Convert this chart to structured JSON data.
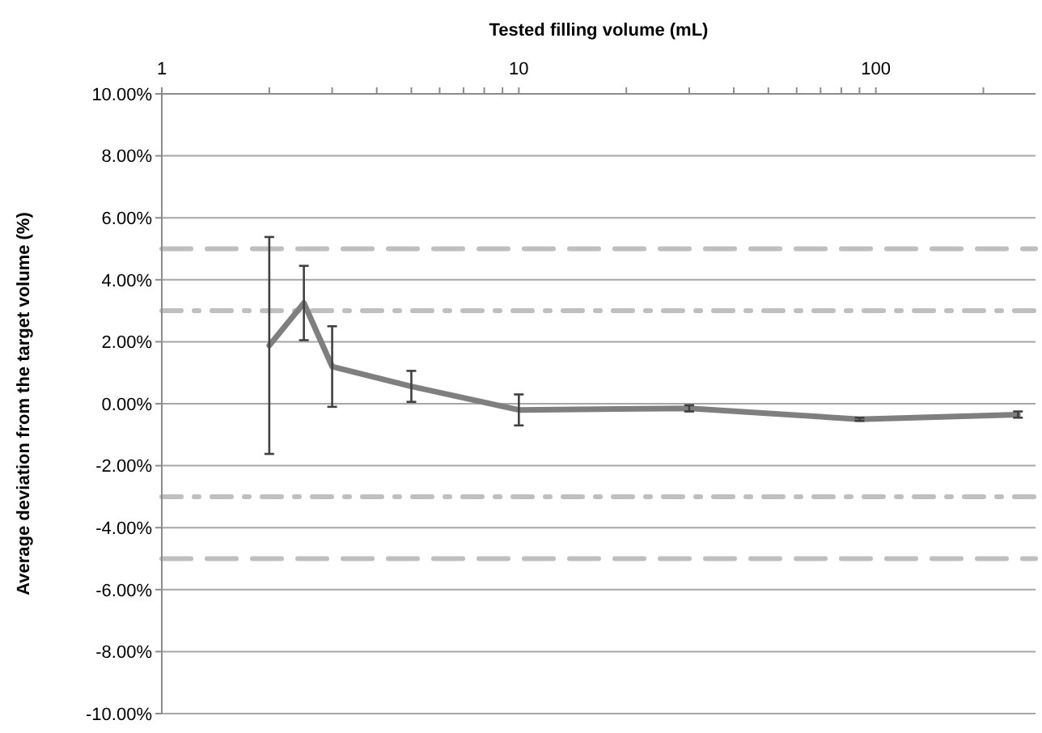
{
  "chart_data": {
    "type": "line",
    "xlabel": "Tested filling volume (mL)",
    "ylabel": "Average deviation from the target volume (%)",
    "x": [
      2,
      2.5,
      3,
      5,
      10,
      30,
      90,
      250
    ],
    "series": [
      {
        "color": "#7f7f7f",
        "values": [
          1.88,
          3.25,
          1.2,
          0.56,
          -0.2,
          -0.15,
          -0.5,
          -0.35
        ],
        "errors": [
          3.5,
          1.2,
          1.3,
          0.5,
          0.5,
          0.1,
          0.05,
          0.1
        ]
      }
    ],
    "log": "x",
    "xlim": [
      1,
      280
    ],
    "xticks": [
      1,
      {
        "value": 2,
        "label": null
      },
      {
        "value": 3,
        "label": null
      },
      {
        "value": 4,
        "label": null
      },
      {
        "value": 5,
        "label": null
      },
      {
        "value": 6,
        "label": null
      },
      {
        "value": 7,
        "label": null
      },
      {
        "value": 8,
        "label": null
      },
      {
        "value": 9,
        "label": null
      },
      10,
      {
        "value": 20,
        "label": null
      },
      {
        "value": 30,
        "label": null
      },
      {
        "value": 40,
        "label": null
      },
      {
        "value": 50,
        "label": null
      },
      {
        "value": 60,
        "label": null
      },
      {
        "value": 70,
        "label": null
      },
      {
        "value": 80,
        "label": null
      },
      {
        "value": 90,
        "label": null
      },
      100,
      {
        "value": 200,
        "label": null
      }
    ],
    "ylim": [
      -10,
      10
    ],
    "yticks": [
      {
        "value": -10,
        "label": "-10.00%"
      },
      {
        "value": -8,
        "label": "-8.00%"
      },
      {
        "value": -6,
        "label": "-6.00%"
      },
      {
        "value": -4,
        "label": "-4.00%"
      },
      {
        "value": -2,
        "label": "-2.00%"
      },
      {
        "value": 0,
        "label": "0.00%"
      },
      {
        "value": 2,
        "label": "2.00%"
      },
      {
        "value": 4,
        "label": "4.00%"
      },
      {
        "value": 6,
        "label": "6.00%"
      },
      {
        "value": 8,
        "label": "8.00%"
      },
      {
        "value": 10,
        "label": "10.00%"
      }
    ],
    "grid": "y",
    "marker": "none",
    "line_style": "solid",
    "ref_lines": [
      {
        "axis": "y",
        "value": 5,
        "color": "#bfbfbf",
        "line_style": "dashed"
      },
      {
        "axis": "y",
        "value": -5,
        "color": "#bfbfbf",
        "line_style": "dashed"
      },
      {
        "axis": "y",
        "value": 3,
        "color": "#bfbfbf",
        "line_style": "dashdot"
      },
      {
        "axis": "y",
        "value": -3,
        "color": "#bfbfbf",
        "line_style": "dashdot"
      }
    ]
  }
}
